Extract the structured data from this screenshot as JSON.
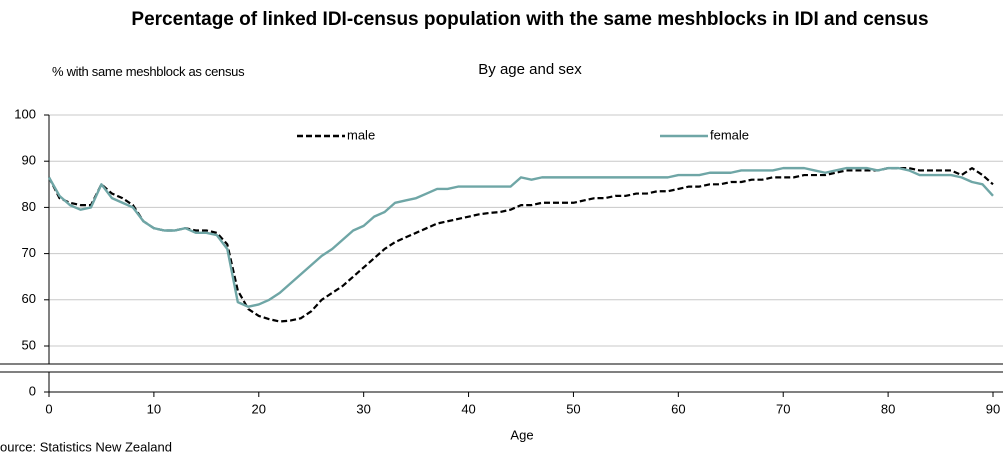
{
  "chart_data": {
    "type": "line",
    "title": "Percentage of linked IDI-census population with the same meshblocks in IDI and census",
    "subtitle": "By age and sex",
    "y_label": "% with same meshblock as census",
    "x_label": "Age",
    "source": "ource: Statistics New Zealand",
    "x": [
      0,
      1,
      2,
      3,
      4,
      5,
      6,
      7,
      8,
      9,
      10,
      11,
      12,
      13,
      14,
      15,
      16,
      17,
      18,
      19,
      20,
      21,
      22,
      23,
      24,
      25,
      26,
      27,
      28,
      29,
      30,
      31,
      32,
      33,
      34,
      35,
      36,
      37,
      38,
      39,
      40,
      41,
      42,
      43,
      44,
      45,
      46,
      47,
      48,
      49,
      50,
      51,
      52,
      53,
      54,
      55,
      56,
      57,
      58,
      59,
      60,
      61,
      62,
      63,
      64,
      65,
      66,
      67,
      68,
      69,
      70,
      71,
      72,
      73,
      74,
      75,
      76,
      77,
      78,
      79,
      80,
      81,
      82,
      83,
      84,
      85,
      86,
      87,
      88,
      89,
      90
    ],
    "series": [
      {
        "name": "male",
        "color": "#000000",
        "dashed": true,
        "values": [
          86.5,
          82,
          81,
          80.5,
          80.5,
          85,
          83,
          82,
          80.5,
          77,
          75.5,
          75,
          75,
          75.5,
          75,
          75,
          74.5,
          72,
          62,
          58,
          56.5,
          55.8,
          55.3,
          55.5,
          56,
          57.5,
          60,
          61.5,
          63,
          65,
          67,
          69,
          71,
          72.5,
          73.5,
          74.5,
          75.5,
          76.5,
          77,
          77.5,
          78,
          78.5,
          78.8,
          79,
          79.5,
          80.5,
          80.5,
          81,
          81,
          81,
          81,
          81.5,
          82,
          82,
          82.5,
          82.5,
          83,
          83,
          83.5,
          83.5,
          84,
          84.5,
          84.5,
          85,
          85,
          85.5,
          85.5,
          86,
          86,
          86.5,
          86.5,
          86.5,
          87,
          87,
          87,
          87.5,
          88,
          88,
          88,
          88,
          88.5,
          88.5,
          88.5,
          88,
          88,
          88,
          88,
          87,
          88.5,
          87,
          85
        ]
      },
      {
        "name": "female",
        "color": "#6fa6a6",
        "dashed": false,
        "values": [
          86.5,
          82.5,
          80.5,
          79.5,
          80,
          85,
          82,
          81,
          80,
          77,
          75.5,
          75,
          75,
          75.5,
          74.5,
          74.5,
          74,
          71,
          59.5,
          58.5,
          59,
          60,
          61.5,
          63.5,
          65.5,
          67.5,
          69.5,
          71,
          73,
          75,
          76,
          78,
          79,
          81,
          81.5,
          82,
          83,
          84,
          84,
          84.5,
          84.5,
          84.5,
          84.5,
          84.5,
          84.5,
          86.5,
          86,
          86.5,
          86.5,
          86.5,
          86.5,
          86.5,
          86.5,
          86.5,
          86.5,
          86.5,
          86.5,
          86.5,
          86.5,
          86.5,
          87,
          87,
          87,
          87.5,
          87.5,
          87.5,
          88,
          88,
          88,
          88,
          88.5,
          88.5,
          88.5,
          88,
          87.5,
          88,
          88.5,
          88.5,
          88.5,
          88,
          88.5,
          88.5,
          88,
          87,
          87,
          87,
          87,
          86.5,
          85.5,
          85,
          82.5
        ]
      }
    ],
    "xlim": [
      0,
      90
    ],
    "xticks": [
      0,
      10,
      20,
      30,
      40,
      50,
      60,
      70,
      80,
      90
    ],
    "ylim": [
      50,
      100
    ],
    "yticks": [
      0,
      50,
      60,
      70,
      80,
      90,
      100
    ],
    "y_axis_break": true,
    "grid": true,
    "legend": "top"
  }
}
